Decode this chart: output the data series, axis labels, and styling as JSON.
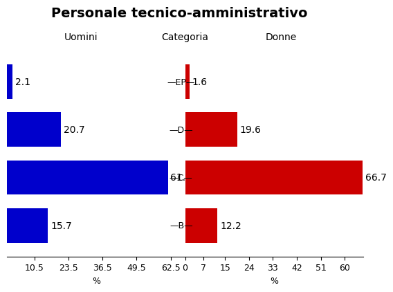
{
  "title": "Personale tecnico-amministrativo",
  "subtitle_left": "Uomini",
  "subtitle_center": "Categoria",
  "subtitle_right": "Donne",
  "categories": [
    "EP",
    "D",
    "C",
    "B"
  ],
  "uomini": [
    2.1,
    20.7,
    61.4,
    15.7
  ],
  "donne": [
    1.6,
    19.6,
    66.7,
    12.2
  ],
  "blue_color": "#0000CC",
  "red_color": "#CC0000",
  "xlim_left": 68,
  "xlim_right": 67,
  "xticks_left": [
    62.5,
    49.5,
    36.5,
    23.5,
    10.5
  ],
  "xticks_right": [
    0,
    7,
    15,
    24,
    33,
    42,
    51,
    60
  ],
  "bar_height": 0.72,
  "background_color": "#ffffff",
  "title_fontsize": 14,
  "label_fontsize": 10,
  "tick_fontsize": 9,
  "cat_fontsize": 9
}
